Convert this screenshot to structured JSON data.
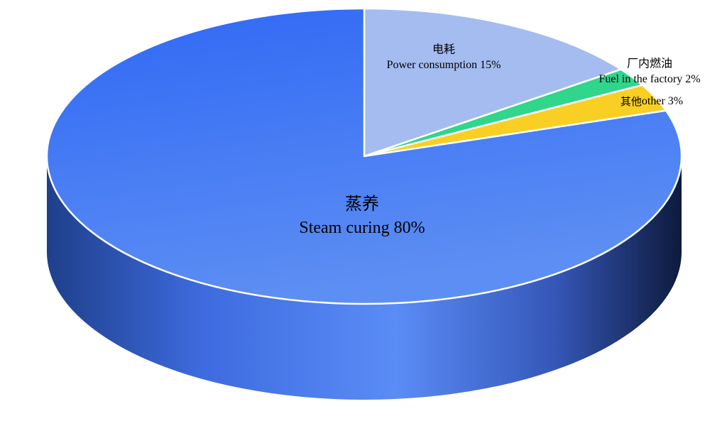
{
  "chart_data": {
    "type": "pie",
    "categories": [
      "蒸养",
      "电耗",
      "厂内燃油",
      "其他"
    ],
    "labels": [
      "Steam curing",
      "Power consumption",
      "Fuel in the factory",
      "other"
    ],
    "values": [
      80,
      15,
      2,
      3
    ],
    "value_labels": [
      "80%",
      "15%",
      "2%",
      "3%"
    ],
    "colors": [
      "#4f82f2",
      "#a4bcef",
      "#2fd68c",
      "#f8cf22"
    ]
  }
}
